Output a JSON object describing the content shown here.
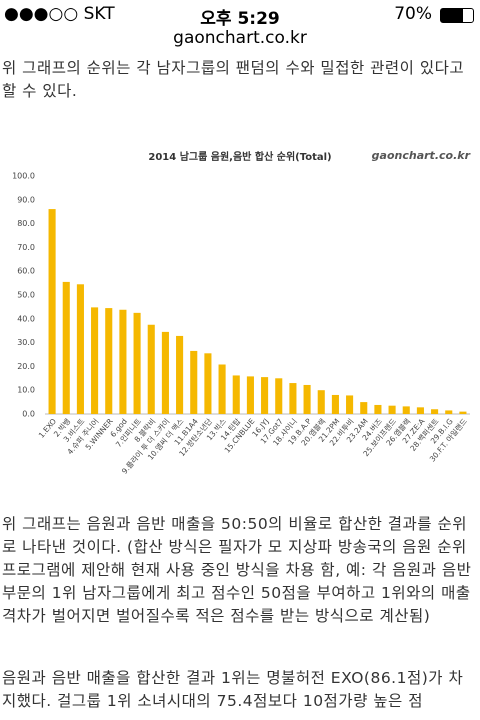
{
  "status_bar": {
    "carrier": "●●●○○ SKT",
    "time": "오후 5:29",
    "battery": "70%"
  },
  "url": "gaonchart.co.kr",
  "paragraphs": [
    "위 그래프의 순위는 각 남자그룹의 팬덤의 수와 밀접한 관련이 있다고 할 수 있다.",
    "위 그래프는 음원과 음반 매출을 50:50의 비율로 합산한 결과를 순위로 나타낸 것이다. (합산 방식은 필자가 모 지상파 방송국의 음원 순위 프로그램에 제안해 현재 사용 중인 방식을 차용 함, 예: 각 음원과 음반 부문의 1위 남자그룹에게 최고 점수인 50점을 부여하고 1위와의 매출 격차가 벌어지면 벌어질수록 적은 점수를 받는 방식으로 계산됨)",
    "음원과 음반 매출을 합산한 결과 1위는 명불허전 EXO(86.1점)가 차지했다. 걸그룹 1위 소녀시대의 75.4점보다 10점가량 높은 점"
  ],
  "chart_data": {
    "type": "bar",
    "title": "2014 남그룹 음원,음반 합산 순위(Total)",
    "watermark": "gaonchart.co.kr",
    "categories": [
      "1.EXO",
      "2.빅뱅",
      "3.비스트",
      "4.슈퍼 주니어",
      "5.WINNER",
      "6.god",
      "7.인피니트",
      "8.블락비",
      "9.플라이 투 더 스카이",
      "10.엠씨 더 맥스",
      "11.B1A4",
      "12.방탄소년단",
      "13.빅스",
      "14.틴탑",
      "15.CNBLUE",
      "16.JYJ",
      "17.Got7",
      "18.샤이니",
      "19.B.A.P",
      "20.엠블랙",
      "21.2PM",
      "22.비투비",
      "23.2AM",
      "24.버즈",
      "25.보이프렌드",
      "26.엠블랙",
      "27.ZE:A",
      "28.백퍼센트",
      "29.B.I.G",
      "30.F.T. 아일랜드"
    ],
    "values": [
      86.1,
      55.5,
      54.5,
      44.8,
      44.5,
      43.8,
      42.5,
      37.5,
      34.5,
      32.8,
      26.5,
      25.5,
      20.8,
      16.2,
      15.8,
      15.5,
      15.0,
      13.0,
      12.2,
      10.0,
      8.0,
      7.8,
      5.0,
      3.8,
      3.5,
      3.2,
      2.8,
      2.0,
      1.5,
      1.0
    ],
    "color": "#f5b800",
    "grid": false,
    "ylim": [
      0,
      100
    ],
    "yticks": [
      {
        "value": 0,
        "label": "0.0"
      },
      {
        "value": 10,
        "label": "10.0"
      },
      {
        "value": 20,
        "label": "20.0"
      },
      {
        "value": 30,
        "label": "30.0"
      },
      {
        "value": 40,
        "label": "40.0"
      },
      {
        "value": 50,
        "label": "50.0"
      },
      {
        "value": 60,
        "label": "60.0"
      },
      {
        "value": 70,
        "label": "70.0"
      },
      {
        "value": 80,
        "label": "80.0"
      },
      {
        "value": 90,
        "label": "90.0"
      },
      {
        "value": 100,
        "label": "100.0"
      }
    ]
  }
}
